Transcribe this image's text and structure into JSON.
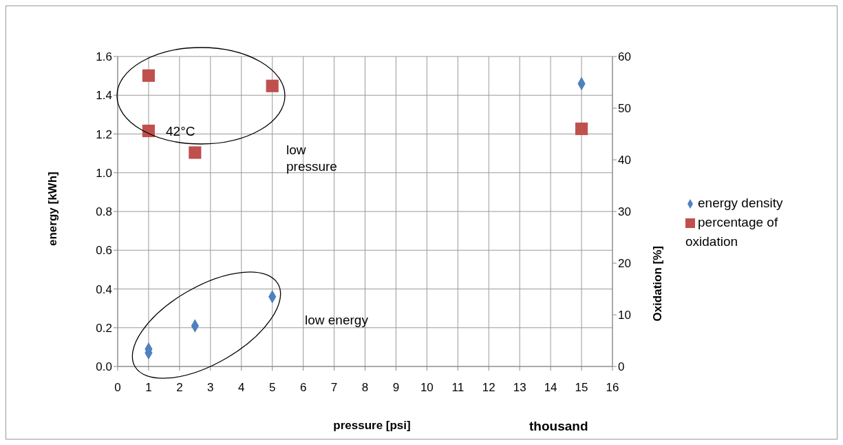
{
  "chart_data": {
    "type": "scatter",
    "xlabel": "pressure [psi]",
    "ylabel": "energy [kWh]",
    "y2label": "Oxidation [%]",
    "series": [
      {
        "name": "energy density",
        "color": "#4f81bd",
        "marker": "diamond",
        "x": [
          1,
          1,
          2.5,
          5,
          15
        ],
        "values": [
          0.09,
          0.07,
          0.21,
          0.36,
          1.46
        ]
      },
      {
        "name": "percentage of oxidation",
        "color": "#c0504d",
        "marker": "square",
        "axis": "y2",
        "x": [
          1,
          1,
          2.5,
          5,
          15
        ],
        "values": [
          56.3,
          45.6,
          41.4,
          54.3,
          46.0
        ]
      }
    ],
    "xlim": [
      0,
      16
    ],
    "xticks": [
      0,
      1,
      2,
      3,
      4,
      5,
      6,
      7,
      8,
      9,
      10,
      11,
      12,
      13,
      14,
      15,
      16
    ],
    "ylim": [
      0,
      1.6
    ],
    "yticks": [
      {
        "value": 0,
        "label": "0.0"
      },
      {
        "value": 0.2,
        "label": "0.2"
      },
      {
        "value": 0.4,
        "label": "0.4"
      },
      {
        "value": 0.6,
        "label": "0.6"
      },
      {
        "value": 0.8,
        "label": "0.8"
      },
      {
        "value": 1.0,
        "label": "1.0"
      },
      {
        "value": 1.2,
        "label": "1.2"
      },
      {
        "value": 1.4,
        "label": "1.4"
      },
      {
        "value": 1.6,
        "label": "1.6"
      }
    ],
    "y2lim": [
      0,
      60
    ],
    "y2ticks": [
      0,
      10,
      20,
      30,
      40,
      50,
      60
    ],
    "grid": true,
    "legend": "right",
    "annotations": [
      "42°C",
      "low pressure",
      "low energy",
      "thousand"
    ]
  }
}
